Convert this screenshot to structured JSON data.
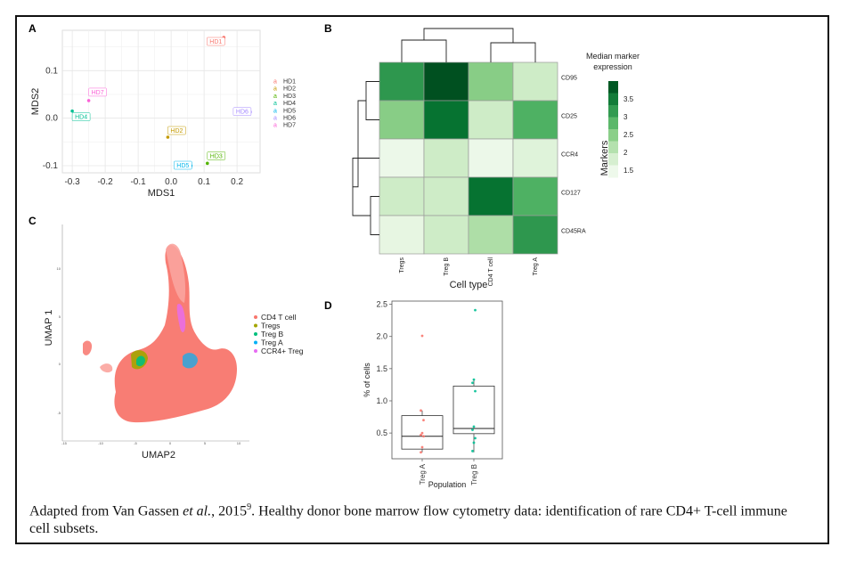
{
  "panels": {
    "a": "A",
    "b": "B",
    "c": "C",
    "d": "D"
  },
  "colors": {
    "HD1": "#f8766d",
    "HD2": "#c49a00",
    "HD3": "#53b400",
    "HD4": "#00c094",
    "HD5": "#00b6eb",
    "HD6": "#a58aff",
    "HD7": "#fb61d7",
    "CD4 T cell": "#f8766d",
    "Tregs": "#a3a500",
    "Treg B": "#00bf7d",
    "Treg A": "#00b0f6",
    "CCR4+ Treg": "#e76bf3"
  },
  "chart_data": [
    {
      "panel": "A",
      "type": "scatter",
      "xlabel": "MDS1",
      "ylabel": "MDS2",
      "xlim": [
        -0.33,
        0.27
      ],
      "ylim": [
        -0.115,
        0.185
      ],
      "xticks": [
        "-0.3",
        "-0.2",
        "-0.1",
        "0.0",
        "0.1",
        "0.2"
      ],
      "yticks": [
        "0.1",
        "0.0",
        "-0.1"
      ],
      "grid": true,
      "legend": "right",
      "points": [
        {
          "name": "HD1",
          "x": 0.16,
          "y": 0.17
        },
        {
          "name": "HD2",
          "x": -0.01,
          "y": -0.04
        },
        {
          "name": "HD3",
          "x": 0.11,
          "y": -0.095
        },
        {
          "name": "HD4",
          "x": -0.3,
          "y": 0.015
        },
        {
          "name": "HD5",
          "x": 0.06,
          "y": -0.1
        },
        {
          "name": "HD6",
          "x": 0.24,
          "y": 0.013
        },
        {
          "name": "HD7",
          "x": -0.25,
          "y": 0.037
        }
      ]
    },
    {
      "panel": "B",
      "type": "heatmap",
      "xlabel": "Cell type",
      "ylabel": "Markers",
      "legend_title": "Median marker expression",
      "legend_ticks": [
        "3.5",
        "3",
        "2.5",
        "2",
        "1.5"
      ],
      "columns": [
        "Tregs",
        "Treg B",
        "CD4 T cell",
        "Treg A"
      ],
      "rows": [
        "CD95",
        "CD25",
        "CCR4",
        "CD127",
        "CD45RA"
      ],
      "values": [
        [
          3.2,
          3.9,
          2.5,
          1.9
        ],
        [
          2.5,
          3.6,
          1.9,
          2.9
        ],
        [
          1.5,
          1.9,
          1.5,
          1.7
        ],
        [
          1.9,
          1.9,
          3.6,
          2.9
        ],
        [
          1.6,
          1.9,
          2.2,
          3.2
        ]
      ],
      "vmin": 1.3,
      "vmax": 4.0
    },
    {
      "panel": "C",
      "type": "scatter",
      "xlabel": "UMAP2",
      "ylabel": "UMAP 1",
      "xticks": [
        "-15",
        "-10",
        "-5",
        "0",
        "5",
        "10"
      ],
      "yticks": [
        "10",
        "5",
        "0",
        "-5"
      ],
      "legend": "right",
      "legend_items": [
        "CD4 T cell",
        "Tregs",
        "Treg B",
        "Treg A",
        "CCR4+ Treg"
      ]
    },
    {
      "panel": "D",
      "type": "box",
      "xlabel": "Population",
      "ylabel": "% of cells",
      "ylim": [
        0.1,
        2.55
      ],
      "yticks": [
        "0.5",
        "1.0",
        "1.5",
        "2.0",
        "2.5"
      ],
      "categories": [
        "Treg A",
        "Treg B"
      ],
      "boxes": [
        {
          "name": "Treg A",
          "q1": 0.25,
          "median": 0.45,
          "q3": 0.77,
          "whisker_low": 0.2,
          "whisker_high": 0.85,
          "points": [
            0.2,
            0.28,
            0.45,
            0.47,
            0.5,
            0.7,
            0.85,
            2.01
          ]
        },
        {
          "name": "Treg B",
          "q1": 0.49,
          "median": 0.57,
          "q3": 1.23,
          "whisker_low": 0.2,
          "whisker_high": 1.33,
          "points": [
            0.22,
            0.35,
            0.42,
            0.55,
            0.6,
            1.15,
            1.28,
            1.33,
            2.41
          ]
        }
      ]
    }
  ],
  "caption": {
    "part1": "Adapted from Van Gassen ",
    "etal": "et al.",
    "part2": ", 2015",
    "sup": "9",
    "part3": ". Healthy donor bone marrow flow cytometry data: identification of rare CD4+ T-cell immune cell subsets."
  }
}
